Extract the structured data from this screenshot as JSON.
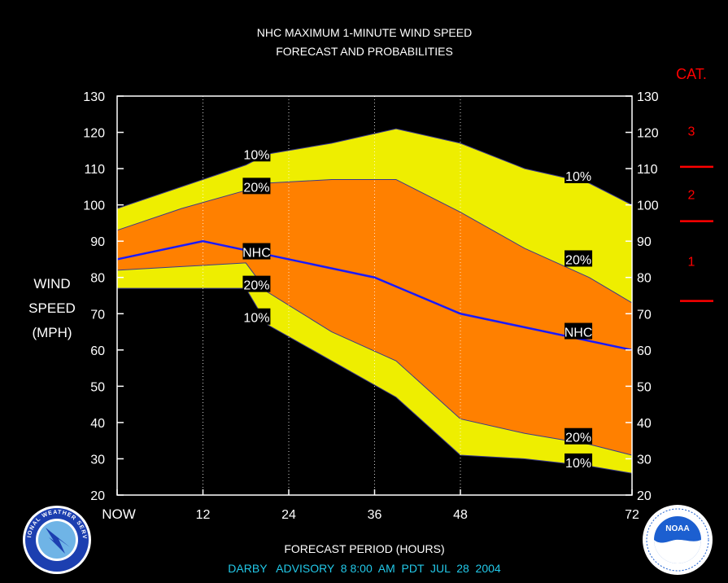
{
  "chart_data": {
    "type": "area",
    "title": "NHC MAXIMUM 1-MINUTE WIND SPEED",
    "subtitle": "FORECAST AND PROBABILITIES",
    "xlabel": "FORECAST PERIOD (HOURS)",
    "ylabel": [
      "WIND",
      "SPEED",
      "(MPH)"
    ],
    "footer": "DARBY   ADVISORY  8 8:00  AM  PDT  JUL  28  2004",
    "x_ticks": [
      "NOW",
      "12",
      "24",
      "36",
      "48",
      "72"
    ],
    "x_tick_values": [
      0,
      12,
      24,
      36,
      48,
      72
    ],
    "xlim": [
      0,
      72
    ],
    "ylim": [
      20,
      130
    ],
    "y_ticks": [
      20,
      30,
      40,
      50,
      60,
      70,
      80,
      90,
      100,
      110,
      120,
      130
    ],
    "x": [
      0,
      9,
      18,
      21,
      30,
      39,
      48,
      57,
      66,
      72
    ],
    "bands": {
      "upper_10": [
        99,
        105,
        111,
        114,
        117,
        121,
        117,
        110,
        106,
        100
      ],
      "upper_20": [
        93,
        99,
        104,
        106,
        107,
        107,
        98,
        88,
        80,
        73
      ],
      "lower_20": [
        82,
        83,
        84,
        76,
        65,
        57,
        41,
        37,
        34,
        31
      ],
      "lower_10": [
        77,
        77,
        77,
        67,
        57,
        47,
        31,
        30,
        28,
        26
      ]
    },
    "nhc_forecast": {
      "x": [
        0,
        12,
        24,
        36,
        48,
        72
      ],
      "values": [
        85,
        90,
        85,
        80,
        70,
        60
      ]
    },
    "labels": {
      "p10": "10%",
      "p20": "20%",
      "nhc": "NHC"
    },
    "category_scale": {
      "title": "CAT.",
      "categories": [
        {
          "name": "1",
          "min": 74,
          "max": 95
        },
        {
          "name": "2",
          "min": 96,
          "max": 110
        },
        {
          "name": "3",
          "min": 111,
          "max": 130
        }
      ]
    },
    "colors": {
      "band_10": "#eeee00",
      "band_20": "#ff8000",
      "nhc_line": "#1a1aff",
      "category": "#ff0000",
      "footer": "#22c8e8",
      "background": "#000000",
      "axis": "#ffffff"
    },
    "grid": "dotted vertical at x ticks"
  },
  "logos": {
    "left": "NATIONAL WEATHER SERVICE",
    "right": "NOAA"
  }
}
